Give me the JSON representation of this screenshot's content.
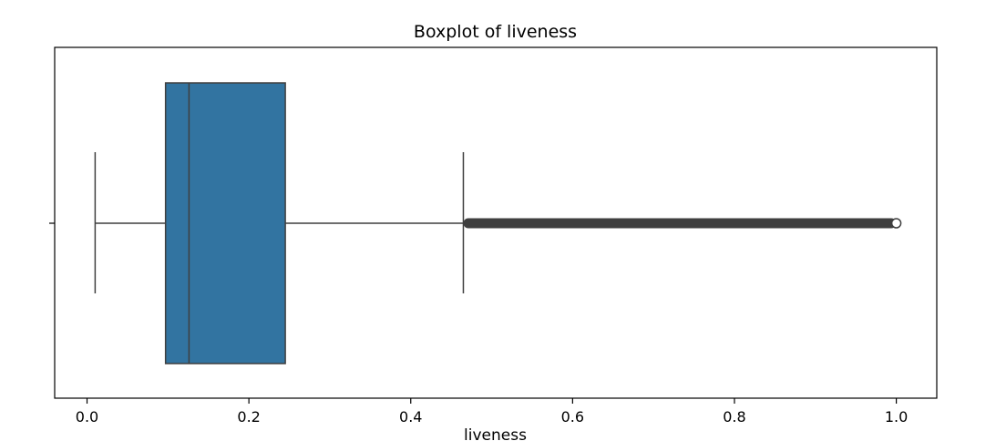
{
  "chart_data": {
    "type": "boxplot",
    "title": "Boxplot of liveness",
    "xlabel": "liveness",
    "ylabel": "",
    "xlim": [
      -0.04,
      1.05
    ],
    "x_ticks": [
      0.0,
      0.2,
      0.4,
      0.6,
      0.8,
      1.0
    ],
    "x_tick_labels": [
      "0.0",
      "0.2",
      "0.4",
      "0.6",
      "0.8",
      "1.0"
    ],
    "grid": false,
    "box": {
      "whisker_low": 0.01,
      "q1": 0.097,
      "median": 0.126,
      "q3": 0.245,
      "whisker_high": 0.465,
      "outlier_range": [
        0.465,
        1.0
      ],
      "outlier_max": 1.0
    },
    "colors": {
      "box_fill": "#3274a1",
      "line": "#3f3f3f",
      "axis": "#000000"
    }
  }
}
